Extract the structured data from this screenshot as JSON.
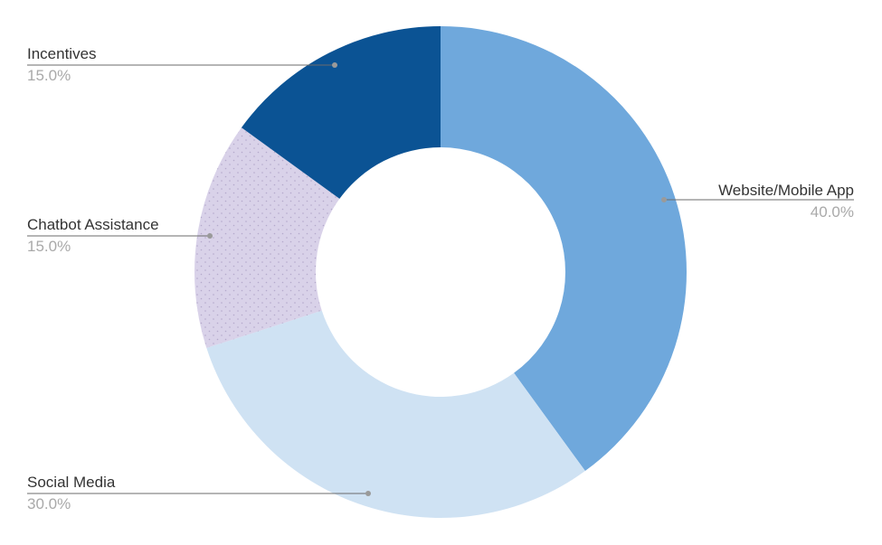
{
  "chart_data": {
    "type": "pie",
    "variant": "donut",
    "slices": [
      {
        "label": "Website/Mobile App",
        "value": 40.0,
        "percent_label": "40.0%",
        "color": "#6fa8dc"
      },
      {
        "label": "Social Media",
        "value": 30.0,
        "percent_label": "30.0%",
        "color": "#cfe2f3"
      },
      {
        "label": "Chatbot Assistance",
        "value": 15.0,
        "percent_label": "15.0%",
        "color": "#d9d2e9",
        "pattern": "dotted"
      },
      {
        "label": "Incentives",
        "value": 15.0,
        "percent_label": "15.0%",
        "color": "#0b5394"
      }
    ],
    "start": "top",
    "direction": "clockwise",
    "legend": "none",
    "labels": "outside with leader lines"
  }
}
